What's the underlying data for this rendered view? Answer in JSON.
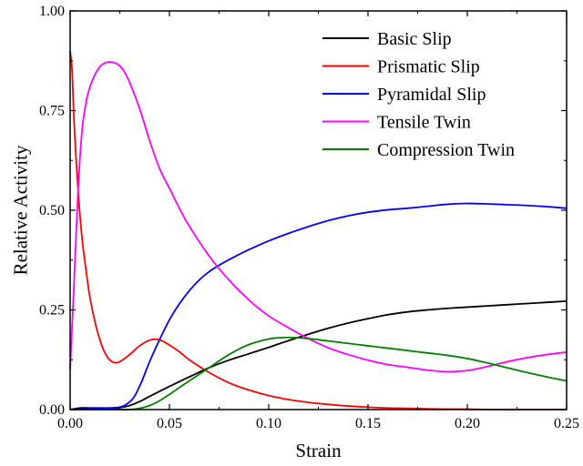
{
  "chart_data": {
    "type": "line",
    "title": "",
    "xlabel": "Strain",
    "ylabel": "Relative Activity",
    "xlim": [
      0.0,
      0.25
    ],
    "ylim": [
      0.0,
      1.0
    ],
    "xticks": [
      0.0,
      0.05,
      0.1,
      0.15,
      0.2,
      0.25
    ],
    "xtick_labels": [
      "0.00",
      "0.05",
      "0.10",
      "0.15",
      "0.20",
      "0.25"
    ],
    "yticks": [
      0.0,
      0.25,
      0.5,
      0.75,
      1.0
    ],
    "ytick_labels": [
      "0.00",
      "0.25",
      "0.50",
      "0.75",
      "1.00"
    ],
    "grid": false,
    "legend_position": "top-right",
    "series": [
      {
        "name": "Basic Slip",
        "color": "#000000",
        "x": [
          0.0,
          0.005,
          0.01,
          0.015,
          0.02,
          0.025,
          0.03,
          0.035,
          0.04,
          0.05,
          0.06,
          0.07,
          0.08,
          0.09,
          0.1,
          0.11,
          0.12,
          0.13,
          0.14,
          0.15,
          0.16,
          0.17,
          0.18,
          0.19,
          0.2,
          0.21,
          0.22,
          0.23,
          0.24,
          0.25
        ],
        "y": [
          0.0,
          0.004,
          0.004,
          0.004,
          0.004,
          0.005,
          0.01,
          0.02,
          0.033,
          0.058,
          0.082,
          0.105,
          0.124,
          0.14,
          0.156,
          0.173,
          0.189,
          0.204,
          0.217,
          0.228,
          0.238,
          0.245,
          0.25,
          0.254,
          0.257,
          0.26,
          0.263,
          0.266,
          0.269,
          0.272
        ]
      },
      {
        "name": "Prismatic Slip",
        "color": "#ff0000",
        "x": [
          0.0,
          0.001,
          0.002,
          0.004,
          0.006,
          0.008,
          0.01,
          0.013,
          0.016,
          0.019,
          0.022,
          0.025,
          0.03,
          0.035,
          0.04,
          0.044,
          0.048,
          0.055,
          0.06,
          0.07,
          0.08,
          0.09,
          0.1,
          0.11,
          0.12,
          0.13,
          0.14,
          0.15,
          0.16,
          0.17,
          0.18,
          0.19,
          0.2,
          0.21,
          0.22,
          0.23,
          0.24,
          0.25
        ],
        "y": [
          0.9,
          0.85,
          0.72,
          0.55,
          0.43,
          0.35,
          0.28,
          0.21,
          0.16,
          0.13,
          0.118,
          0.12,
          0.138,
          0.16,
          0.174,
          0.176,
          0.168,
          0.145,
          0.125,
          0.093,
          0.067,
          0.049,
          0.035,
          0.025,
          0.018,
          0.013,
          0.009,
          0.006,
          0.004,
          0.003,
          0.002,
          0.001,
          0.001,
          0.0,
          0.0,
          0.0,
          0.0,
          0.0
        ]
      },
      {
        "name": "Pyramidal Slip",
        "color": "#0000ff",
        "x": [
          0.0,
          0.01,
          0.02,
          0.025,
          0.028,
          0.032,
          0.036,
          0.04,
          0.045,
          0.05,
          0.055,
          0.06,
          0.065,
          0.07,
          0.075,
          0.08,
          0.09,
          0.1,
          0.11,
          0.12,
          0.13,
          0.14,
          0.15,
          0.16,
          0.17,
          0.18,
          0.19,
          0.2,
          0.21,
          0.22,
          0.23,
          0.24,
          0.25
        ],
        "y": [
          0.0,
          0.002,
          0.004,
          0.006,
          0.012,
          0.03,
          0.07,
          0.12,
          0.175,
          0.225,
          0.265,
          0.298,
          0.325,
          0.346,
          0.362,
          0.376,
          0.401,
          0.423,
          0.442,
          0.459,
          0.474,
          0.486,
          0.495,
          0.501,
          0.505,
          0.51,
          0.515,
          0.517,
          0.516,
          0.514,
          0.512,
          0.509,
          0.505
        ]
      },
      {
        "name": "Tensile Twin",
        "color": "#ff00ff",
        "x": [
          0.0,
          0.002,
          0.004,
          0.006,
          0.008,
          0.01,
          0.013,
          0.016,
          0.02,
          0.024,
          0.027,
          0.03,
          0.035,
          0.04,
          0.045,
          0.05,
          0.055,
          0.06,
          0.07,
          0.08,
          0.09,
          0.1,
          0.11,
          0.12,
          0.13,
          0.14,
          0.15,
          0.16,
          0.17,
          0.18,
          0.19,
          0.2,
          0.21,
          0.22,
          0.23,
          0.24,
          0.25
        ],
        "y": [
          0.1,
          0.32,
          0.55,
          0.7,
          0.77,
          0.81,
          0.845,
          0.865,
          0.872,
          0.866,
          0.85,
          0.82,
          0.755,
          0.675,
          0.605,
          0.555,
          0.505,
          0.46,
          0.385,
          0.325,
          0.275,
          0.235,
          0.205,
          0.178,
          0.155,
          0.138,
          0.124,
          0.113,
          0.106,
          0.099,
          0.095,
          0.098,
          0.108,
          0.12,
          0.13,
          0.138,
          0.144
        ]
      },
      {
        "name": "Compression Twin",
        "color": "#008000",
        "x": [
          0.0,
          0.02,
          0.03,
          0.035,
          0.04,
          0.045,
          0.05,
          0.055,
          0.06,
          0.07,
          0.08,
          0.09,
          0.1,
          0.105,
          0.11,
          0.115,
          0.12,
          0.13,
          0.14,
          0.15,
          0.16,
          0.17,
          0.18,
          0.19,
          0.2,
          0.21,
          0.22,
          0.23,
          0.24,
          0.25
        ],
        "y": [
          0.0,
          0.0,
          0.0,
          0.003,
          0.01,
          0.022,
          0.038,
          0.055,
          0.072,
          0.105,
          0.138,
          0.163,
          0.177,
          0.18,
          0.181,
          0.18,
          0.178,
          0.172,
          0.166,
          0.16,
          0.154,
          0.148,
          0.142,
          0.136,
          0.128,
          0.117,
          0.105,
          0.093,
          0.082,
          0.072
        ]
      }
    ]
  }
}
